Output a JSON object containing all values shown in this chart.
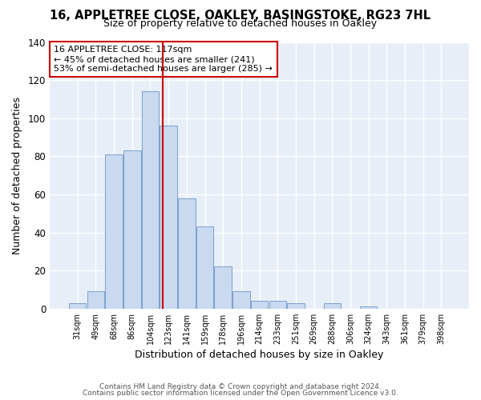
{
  "title1": "16, APPLETREE CLOSE, OAKLEY, BASINGSTOKE, RG23 7HL",
  "title2": "Size of property relative to detached houses in Oakley",
  "xlabel": "Distribution of detached houses by size in Oakley",
  "ylabel": "Number of detached properties",
  "categories": [
    "31sqm",
    "49sqm",
    "68sqm",
    "86sqm",
    "104sqm",
    "123sqm",
    "141sqm",
    "159sqm",
    "178sqm",
    "196sqm",
    "214sqm",
    "233sqm",
    "251sqm",
    "269sqm",
    "288sqm",
    "306sqm",
    "324sqm",
    "343sqm",
    "361sqm",
    "379sqm",
    "398sqm"
  ],
  "values": [
    3,
    9,
    81,
    83,
    114,
    96,
    58,
    43,
    22,
    9,
    4,
    4,
    3,
    0,
    3,
    0,
    1,
    0,
    0,
    0,
    0
  ],
  "bar_color": "#c9d9f0",
  "bar_edge_color": "#7aa0cc",
  "vline_color": "#cc0000",
  "annotation_text": "16 APPLETREE CLOSE: 117sqm\n← 45% of detached houses are smaller (241)\n53% of semi-detached houses are larger (285) →",
  "annotation_box_color": "white",
  "annotation_box_edge": "#cc0000",
  "ylim": [
    0,
    140
  ],
  "yticks": [
    0,
    20,
    40,
    60,
    80,
    100,
    120,
    140
  ],
  "footer1": "Contains HM Land Registry data © Crown copyright and database right 2024.",
  "footer2": "Contains public sector information licensed under the Open Government Licence v3.0.",
  "fig_bg_color": "#ffffff",
  "plot_bg_color": "#e8eef8"
}
